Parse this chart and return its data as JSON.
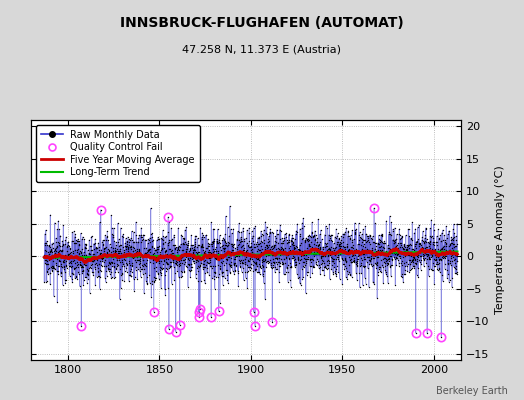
{
  "title": "INNSBRUCK-FLUGHAFEN (AUTOMAT)",
  "subtitle": "47.258 N, 11.373 E (Austria)",
  "ylabel": "Temperature Anomaly (°C)",
  "attribution": "Berkeley Earth",
  "xlim": [
    1780,
    2015
  ],
  "ylim": [
    -16,
    21
  ],
  "yticks": [
    -15,
    -10,
    -5,
    0,
    5,
    10,
    15,
    20
  ],
  "xticks": [
    1800,
    1850,
    1900,
    1950,
    2000
  ],
  "fig_bg_color": "#d8d8d8",
  "plot_bg_color": "#ffffff",
  "raw_color": "#3333cc",
  "ma_color": "#cc0000",
  "trend_color": "#00bb00",
  "qc_color": "#ff44ff",
  "seed": 17,
  "start_year": 1787,
  "end_year": 2013
}
